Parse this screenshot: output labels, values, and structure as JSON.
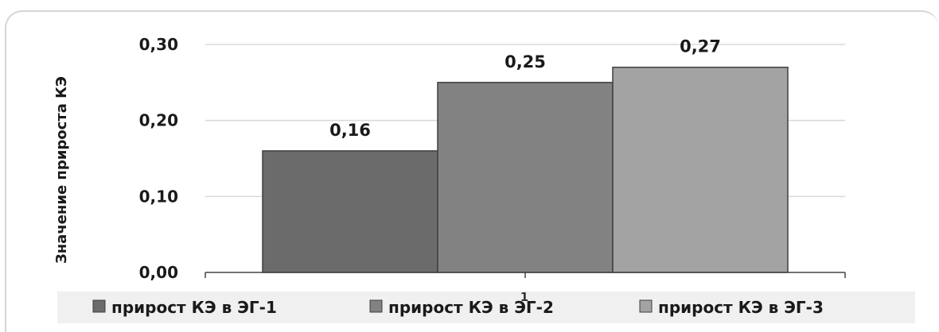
{
  "chart_data": {
    "type": "bar",
    "title": "",
    "xlabel": "",
    "ylabel": "Значение прироста КЭ",
    "ylim": [
      0,
      0.3
    ],
    "yticks": [
      "0,00",
      "0,10",
      "0,20",
      "0,30"
    ],
    "grid": true,
    "legend_position": "bottom",
    "categories": [
      "1"
    ],
    "series": [
      {
        "name": "прирост КЭ в ЭГ-1",
        "values": [
          0.16
        ],
        "label": "0,16",
        "color": "#6b6b6b"
      },
      {
        "name": "прирост КЭ в ЭГ-2",
        "values": [
          0.25
        ],
        "label": "0,25",
        "color": "#828282"
      },
      {
        "name": "прирост КЭ в ЭГ-3",
        "values": [
          0.27
        ],
        "label": "0,27",
        "color": "#a3a3a3"
      }
    ]
  }
}
